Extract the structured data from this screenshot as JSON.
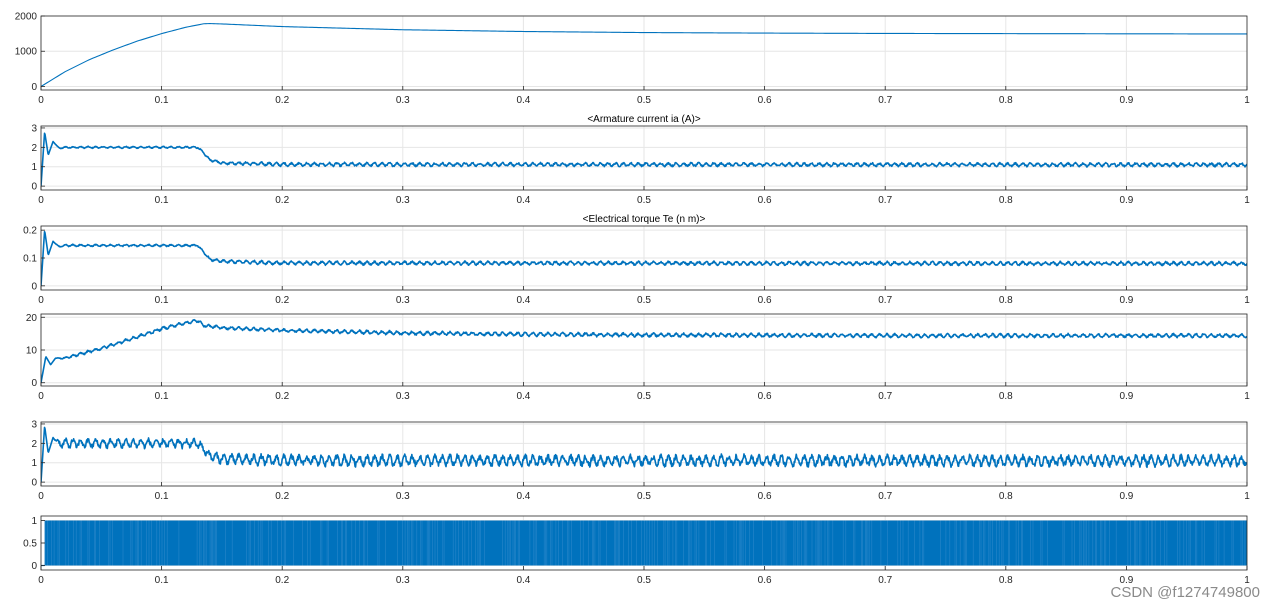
{
  "colors": {
    "background": "#ffffff",
    "axes": "#262626",
    "grid": "#e6e6e6",
    "series": "#0072bd",
    "watermark": "#8a8a8a"
  },
  "watermark": "CSDN @f1274749800",
  "chart_data": [
    {
      "type": "line",
      "title": "",
      "xlim": [
        0,
        1
      ],
      "ylim": [
        -100,
        2000
      ],
      "grid": true,
      "x_ticks": [
        "0",
        "0.1",
        "0.2",
        "0.3",
        "0.4",
        "0.5",
        "0.6",
        "0.7",
        "0.8",
        "0.9",
        "1"
      ],
      "y_ticks": [
        {
          "value": 0,
          "label": "0"
        },
        {
          "value": 1000,
          "label": "1000"
        },
        {
          "value": 2000,
          "label": "2000"
        }
      ],
      "series": [
        {
          "x": [
            0,
            0.02,
            0.04,
            0.06,
            0.08,
            0.1,
            0.12,
            0.135,
            0.14,
            0.15,
            0.2,
            0.3,
            0.4,
            0.5,
            0.6,
            0.7,
            0.8,
            0.9,
            1.0
          ],
          "y": [
            0,
            420,
            760,
            1040,
            1290,
            1500,
            1680,
            1780,
            1785,
            1775,
            1700,
            1610,
            1560,
            1530,
            1515,
            1505,
            1500,
            1495,
            1490
          ]
        }
      ]
    },
    {
      "type": "line",
      "title": "<Armature current ia (A)>",
      "xlim": [
        0,
        1
      ],
      "ylim": [
        -0.2,
        3.1
      ],
      "grid": true,
      "x_ticks": [
        "0",
        "0.1",
        "0.2",
        "0.3",
        "0.4",
        "0.5",
        "0.6",
        "0.7",
        "0.8",
        "0.9",
        "1"
      ],
      "y_ticks": [
        {
          "value": 0,
          "label": "0"
        },
        {
          "value": 1,
          "label": "1"
        },
        {
          "value": 2,
          "label": "2"
        },
        {
          "value": 3,
          "label": "3"
        }
      ],
      "series": [
        {
          "x": [
            0,
            0.003,
            0.006,
            0.01,
            0.015,
            0.02,
            0.13,
            0.135,
            0.14,
            0.15,
            0.2,
            1.0
          ],
          "y": [
            0,
            2.8,
            1.6,
            2.3,
            1.95,
            2.0,
            2.0,
            1.7,
            1.35,
            1.2,
            1.12,
            1.1
          ],
          "ripple": [
            0,
            0,
            0,
            0,
            0.04,
            0.05,
            0.05,
            0.05,
            0.06,
            0.08,
            0.1,
            0.1
          ]
        }
      ]
    },
    {
      "type": "line",
      "title": "<Electrical torque Te (n m)>",
      "xlim": [
        0,
        1
      ],
      "ylim": [
        -0.015,
        0.215
      ],
      "grid": true,
      "x_ticks": [
        "0",
        "0.1",
        "0.2",
        "0.3",
        "0.4",
        "0.5",
        "0.6",
        "0.7",
        "0.8",
        "0.9",
        "1"
      ],
      "y_ticks": [
        {
          "value": 0,
          "label": "0"
        },
        {
          "value": 0.1,
          "label": "0.1"
        },
        {
          "value": 0.2,
          "label": "0.2"
        }
      ],
      "series": [
        {
          "x": [
            0,
            0.003,
            0.006,
            0.01,
            0.015,
            0.02,
            0.13,
            0.135,
            0.14,
            0.15,
            0.2,
            1.0
          ],
          "y": [
            0,
            0.2,
            0.11,
            0.16,
            0.14,
            0.145,
            0.145,
            0.12,
            0.095,
            0.088,
            0.082,
            0.08
          ],
          "ripple": [
            0,
            0,
            0,
            0,
            0.003,
            0.004,
            0.004,
            0.004,
            0.005,
            0.006,
            0.007,
            0.007
          ]
        }
      ]
    },
    {
      "type": "line",
      "title": "",
      "xlim": [
        0,
        1
      ],
      "ylim": [
        -1,
        21
      ],
      "grid": true,
      "x_ticks": [
        "0",
        "0.1",
        "0.2",
        "0.3",
        "0.4",
        "0.5",
        "0.6",
        "0.7",
        "0.8",
        "0.9",
        "1"
      ],
      "y_ticks": [
        {
          "value": 0,
          "label": "0"
        },
        {
          "value": 10,
          "label": "10"
        },
        {
          "value": 20,
          "label": "20"
        }
      ],
      "series": [
        {
          "x": [
            0,
            0.004,
            0.008,
            0.012,
            0.02,
            0.05,
            0.08,
            0.1,
            0.12,
            0.13,
            0.135,
            0.15,
            0.2,
            0.3,
            0.4,
            0.5,
            0.6,
            0.7,
            0.8,
            0.9,
            1.0
          ],
          "y": [
            0,
            8,
            5.5,
            7.5,
            7.5,
            10.5,
            14,
            16.5,
            18.3,
            19,
            17.5,
            16.8,
            16,
            15.2,
            14.8,
            14.6,
            14.5,
            14.4,
            14.4,
            14.4,
            14.4
          ],
          "ripple": [
            0,
            0,
            0,
            0,
            0.4,
            0.5,
            0.5,
            0.5,
            0.5,
            0.5,
            0.5,
            0.5,
            0.5,
            0.6,
            0.6,
            0.6,
            0.6,
            0.6,
            0.6,
            0.6,
            0.6
          ]
        }
      ]
    },
    {
      "type": "line",
      "title": "",
      "xlim": [
        0,
        1
      ],
      "ylim": [
        -0.2,
        3.1
      ],
      "grid": true,
      "x_ticks": [
        "0",
        "0.1",
        "0.2",
        "0.3",
        "0.4",
        "0.5",
        "0.6",
        "0.7",
        "0.8",
        "0.9",
        "1"
      ],
      "y_ticks": [
        {
          "value": 0,
          "label": "0"
        },
        {
          "value": 1,
          "label": "1"
        },
        {
          "value": 2,
          "label": "2"
        },
        {
          "value": 3,
          "label": "3"
        }
      ],
      "series": [
        {
          "x": [
            0,
            0.003,
            0.006,
            0.01,
            0.015,
            0.02,
            0.13,
            0.135,
            0.14,
            0.15,
            0.2,
            1.0
          ],
          "y": [
            0,
            2.9,
            1.5,
            2.3,
            2.0,
            2.0,
            2.0,
            1.7,
            1.35,
            1.2,
            1.12,
            1.1
          ],
          "ripple": [
            0,
            0,
            0,
            0,
            0.2,
            0.25,
            0.25,
            0.25,
            0.25,
            0.27,
            0.3,
            0.3
          ]
        }
      ]
    },
    {
      "type": "line",
      "title": "",
      "xlim": [
        0,
        1
      ],
      "ylim": [
        -0.1,
        1.1
      ],
      "grid": true,
      "x_ticks": [
        "0",
        "0.1",
        "0.2",
        "0.3",
        "0.4",
        "0.5",
        "0.6",
        "0.7",
        "0.8",
        "0.9",
        "1"
      ],
      "y_ticks": [
        {
          "value": 0,
          "label": "0"
        },
        {
          "value": 0.5,
          "label": "0.5"
        },
        {
          "value": 1,
          "label": "1"
        }
      ],
      "series": [
        {
          "x": [
            0,
            0.003,
            1.0
          ],
          "y": [
            0,
            0,
            0
          ],
          "pwm": true,
          "levels": [
            0,
            1
          ]
        }
      ]
    }
  ]
}
